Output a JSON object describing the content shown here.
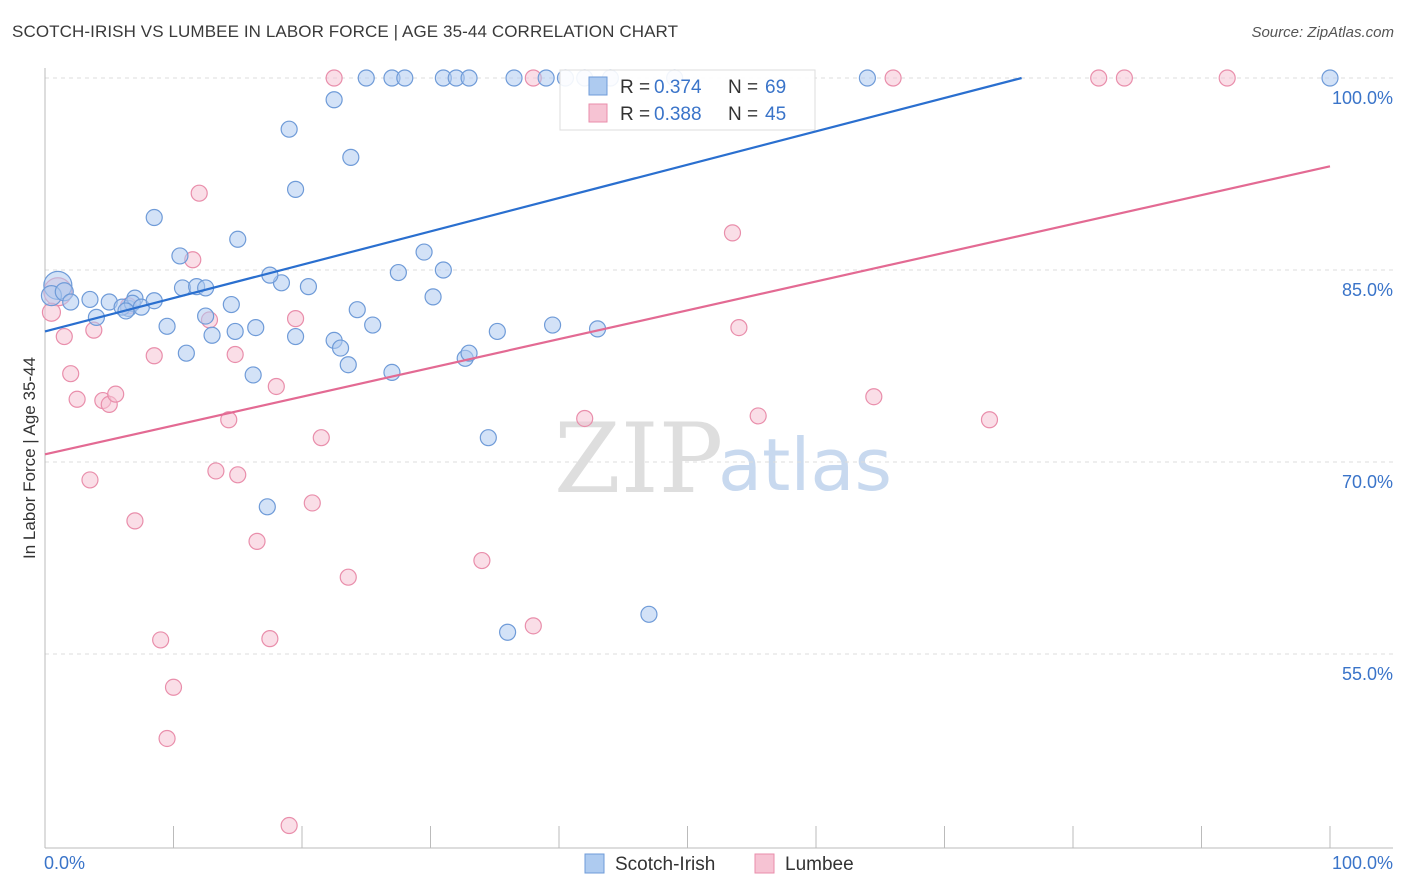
{
  "title": "SCOTCH-IRISH VS LUMBEE IN LABOR FORCE | AGE 35-44 CORRELATION CHART",
  "source": "Source: ZipAtlas.com",
  "watermark": {
    "zip": "ZIP",
    "atlas": "atlas"
  },
  "colors": {
    "blue_fill": "#aecbf0",
    "blue_stroke": "#6f9bd8",
    "blue_line": "#2a6fcf",
    "pink_fill": "#f6c3d3",
    "pink_stroke": "#e98eab",
    "pink_line": "#e36a93",
    "accent_text": "#3a74c9",
    "grid": "#dddddd"
  },
  "legend": {
    "r_label": "R =",
    "n_label": "N =",
    "series": [
      {
        "name": "Scotch-Irish",
        "r": "0.374",
        "n": "69"
      },
      {
        "name": "Lumbee",
        "r": "0.388",
        "n": "45"
      }
    ]
  },
  "chart_data": {
    "type": "scatter",
    "title": "SCOTCH-IRISH VS LUMBEE IN LABOR FORCE | AGE 35-44 CORRELATION CHART",
    "xlabel": "",
    "ylabel": "In Labor Force | Age 35-44",
    "xlim": [
      0,
      100
    ],
    "ylim": [
      40,
      102
    ],
    "x_tick_labels": [
      "0.0%",
      "100.0%"
    ],
    "y_ticks": [
      55,
      70,
      85,
      100
    ],
    "y_tick_labels": [
      "55.0%",
      "70.0%",
      "85.0%",
      "100.0%"
    ],
    "series": [
      {
        "name": "Scotch-Irish",
        "r": 0.374,
        "n": 69,
        "trend": {
          "x0": 0,
          "y0": 80.2,
          "x1": 76,
          "y1": 100
        },
        "points": [
          [
            1.0,
            83.8,
            14
          ],
          [
            0.5,
            83.0,
            10
          ],
          [
            1.5,
            83.3,
            9
          ],
          [
            2.0,
            82.5,
            8
          ],
          [
            3.5,
            82.7,
            8
          ],
          [
            4.0,
            81.3,
            8
          ],
          [
            5.0,
            82.5,
            8
          ],
          [
            6.5,
            82.0,
            8
          ],
          [
            6.0,
            82.1,
            8
          ],
          [
            7.0,
            82.8,
            8
          ],
          [
            6.8,
            82.4,
            8
          ],
          [
            7.5,
            82.1,
            8
          ],
          [
            6.3,
            81.8,
            8
          ],
          [
            8.5,
            82.6,
            8
          ],
          [
            9.5,
            80.6,
            8
          ],
          [
            11.0,
            78.5,
            8
          ],
          [
            10.7,
            83.6,
            8
          ],
          [
            11.8,
            83.7,
            8
          ],
          [
            12.5,
            81.4,
            8
          ],
          [
            13.0,
            79.9,
            8
          ],
          [
            14.5,
            82.3,
            8
          ],
          [
            14.8,
            80.2,
            8
          ],
          [
            16.2,
            76.8,
            8
          ],
          [
            16.4,
            80.5,
            8
          ],
          [
            17.3,
            66.5,
            8
          ],
          [
            18.4,
            84.0,
            8
          ],
          [
            19.5,
            79.8,
            8
          ],
          [
            20.5,
            83.7,
            8
          ],
          [
            22.5,
            79.5,
            8
          ],
          [
            23.0,
            78.9,
            8
          ],
          [
            23.6,
            77.6,
            8
          ],
          [
            24.3,
            81.9,
            8
          ],
          [
            25.5,
            80.7,
            8
          ],
          [
            27.0,
            77.0,
            8
          ],
          [
            27.5,
            84.8,
            8
          ],
          [
            29.5,
            86.4,
            8
          ],
          [
            30.2,
            82.9,
            8
          ],
          [
            31.0,
            85.0,
            8
          ],
          [
            32.7,
            78.1,
            8
          ],
          [
            33.0,
            78.5,
            8
          ],
          [
            34.5,
            71.9,
            8
          ],
          [
            35.2,
            80.2,
            8
          ],
          [
            36.0,
            56.7,
            8
          ],
          [
            39.5,
            80.7,
            8
          ],
          [
            43.0,
            80.4,
            8
          ],
          [
            47.0,
            58.1,
            8
          ],
          [
            8.5,
            89.1,
            8
          ],
          [
            10.5,
            86.1,
            8
          ],
          [
            12.5,
            83.6,
            8
          ],
          [
            15.0,
            87.4,
            8
          ],
          [
            17.5,
            84.6,
            8
          ],
          [
            19.5,
            91.3,
            8
          ],
          [
            23.8,
            93.8,
            8
          ],
          [
            19.0,
            96.0,
            8
          ],
          [
            22.5,
            98.3,
            8
          ],
          [
            25.0,
            100.0,
            8
          ],
          [
            27.0,
            100.0,
            8
          ],
          [
            28.0,
            100.0,
            8
          ],
          [
            31.0,
            100.0,
            8
          ],
          [
            32.0,
            100.0,
            8
          ],
          [
            33.0,
            100.0,
            8
          ],
          [
            36.5,
            100.0,
            8
          ],
          [
            39.0,
            100.0,
            8
          ],
          [
            40.5,
            100.0,
            8
          ],
          [
            42.0,
            100.0,
            8
          ],
          [
            44.0,
            100.0,
            8
          ],
          [
            49.0,
            100.0,
            8
          ],
          [
            64.0,
            100.0,
            8
          ],
          [
            100.0,
            100.0,
            8
          ]
        ]
      },
      {
        "name": "Lumbee",
        "r": 0.388,
        "n": 45,
        "trend": {
          "x0": 0,
          "y0": 70.6,
          "x1": 100,
          "y1": 93.1
        },
        "points": [
          [
            1.0,
            83.3,
            14
          ],
          [
            0.5,
            81.7,
            9
          ],
          [
            1.5,
            79.8,
            8
          ],
          [
            2.0,
            76.9,
            8
          ],
          [
            2.5,
            74.9,
            8
          ],
          [
            3.5,
            68.6,
            8
          ],
          [
            3.8,
            80.3,
            8
          ],
          [
            4.5,
            74.8,
            8
          ],
          [
            5.0,
            74.5,
            8
          ],
          [
            5.5,
            75.3,
            8
          ],
          [
            6.5,
            82.2,
            8
          ],
          [
            7.0,
            65.4,
            8
          ],
          [
            8.5,
            78.3,
            8
          ],
          [
            9.0,
            56.1,
            8
          ],
          [
            9.5,
            48.4,
            8
          ],
          [
            10.0,
            52.4,
            8
          ],
          [
            11.5,
            85.8,
            8
          ],
          [
            12.0,
            91.0,
            8
          ],
          [
            12.8,
            81.1,
            8
          ],
          [
            13.3,
            69.3,
            8
          ],
          [
            14.3,
            73.3,
            8
          ],
          [
            14.8,
            78.4,
            8
          ],
          [
            15.0,
            69.0,
            8
          ],
          [
            16.5,
            63.8,
            8
          ],
          [
            17.5,
            56.2,
            8
          ],
          [
            18.0,
            75.9,
            8
          ],
          [
            19.0,
            41.6,
            8
          ],
          [
            19.5,
            81.2,
            8
          ],
          [
            20.8,
            66.8,
            8
          ],
          [
            21.5,
            71.9,
            8
          ],
          [
            23.6,
            61.0,
            8
          ],
          [
            34.0,
            62.3,
            8
          ],
          [
            38.0,
            57.2,
            8
          ],
          [
            42.0,
            73.4,
            8
          ],
          [
            53.5,
            87.9,
            8
          ],
          [
            54.0,
            80.5,
            8
          ],
          [
            55.5,
            73.6,
            8
          ],
          [
            64.5,
            75.1,
            8
          ],
          [
            73.5,
            73.3,
            8
          ],
          [
            82.0,
            100.0,
            8
          ],
          [
            84.0,
            100.0,
            8
          ],
          [
            92.0,
            100.0,
            8
          ],
          [
            22.5,
            100.0,
            8
          ],
          [
            38.0,
            100.0,
            8
          ],
          [
            66.0,
            100.0,
            8
          ]
        ]
      }
    ]
  }
}
